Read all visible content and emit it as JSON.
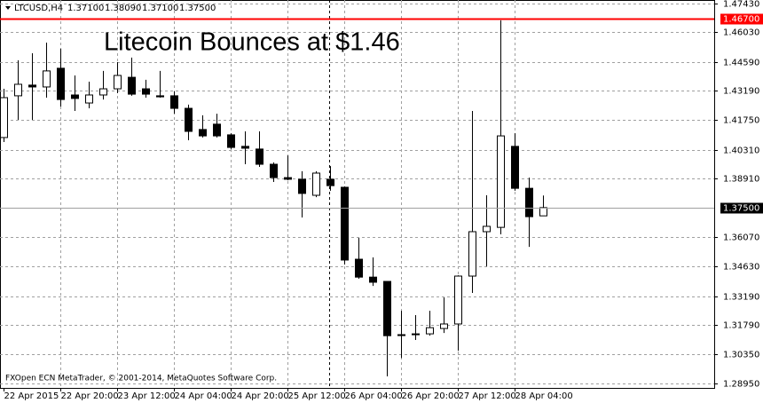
{
  "chart_data": {
    "type": "candlestick",
    "title": "Litecoin Bounces at $1.46",
    "header": {
      "symbol": "LTCUSD,H4",
      "values": [
        "1.37100",
        "1.38090",
        "1.37100",
        "1.37500"
      ]
    },
    "footer": "FXOpen ECN MetaTrader, © 2001-2014, MetaQuotes Software Corp.",
    "categories": [
      "22 Apr 2015",
      null,
      null,
      null,
      "22 Apr 20:00",
      null,
      null,
      null,
      "23 Apr 12:00",
      null,
      null,
      null,
      "24 Apr 04:00",
      null,
      null,
      null,
      "24 Apr 20:00",
      null,
      null,
      null,
      "25 Apr 12:00",
      null,
      null,
      null,
      "26 Apr 04:00",
      null,
      null,
      null,
      "26 Apr 20:00",
      null,
      null,
      null,
      "27 Apr 12:00",
      null,
      null,
      null,
      "28 Apr 04:00",
      null,
      null
    ],
    "open": [
      1.4091,
      1.4294,
      1.4346,
      1.4337,
      1.4428,
      1.4298,
      1.4259,
      1.4298,
      1.4328,
      1.4384,
      1.4328,
      1.4294,
      1.4294,
      1.4233,
      1.413,
      1.4156,
      1.4104,
      1.4048,
      1.4035,
      1.3961,
      1.3896,
      1.3888,
      1.381,
      1.3888,
      1.3849,
      1.3499,
      1.3412,
      1.3391,
      1.3132,
      1.3132,
      1.3136,
      1.3162,
      1.3184,
      1.3417,
      1.3633,
      1.3654,
      1.4048,
      1.3844,
      1.371
    ],
    "high": [
      1.4328,
      1.4467,
      1.4501,
      1.4553,
      1.4523,
      1.4393,
      1.4363,
      1.4415,
      1.4458,
      1.448,
      1.4372,
      1.4415,
      1.4315,
      1.4251,
      1.4199,
      1.4207,
      1.4112,
      1.4121,
      1.4121,
      1.397,
      1.4004,
      1.3927,
      1.3927,
      1.3952,
      1.3853,
      1.3603,
      1.3508,
      1.3391,
      1.3248,
      1.3227,
      1.3248,
      1.3313,
      1.3421,
      1.422,
      1.381,
      1.4661,
      1.4112,
      1.3896,
      1.3809
    ],
    "low": [
      1.4069,
      1.4177,
      1.4177,
      1.4285,
      1.4242,
      1.422,
      1.4233,
      1.4276,
      1.4307,
      1.4294,
      1.4285,
      1.4285,
      1.4207,
      1.4078,
      1.4091,
      1.4091,
      1.4035,
      1.3961,
      1.3948,
      1.3875,
      1.3883,
      1.3702,
      1.3801,
      1.3832,
      1.3473,
      1.3404,
      1.3369,
      1.2929,
      1.3019,
      1.3106,
      1.3127,
      1.314,
      1.3054,
      1.3335,
      1.3464,
      1.362,
      1.3832,
      1.3559,
      1.371
    ],
    "close": [
      1.4285,
      1.435,
      1.4337,
      1.4415,
      1.4276,
      1.4281,
      1.4298,
      1.4328,
      1.4393,
      1.4302,
      1.4302,
      1.4289,
      1.4233,
      1.4121,
      1.4099,
      1.4099,
      1.4043,
      1.4039,
      1.3961,
      1.3896,
      1.3888,
      1.3819,
      1.3918,
      1.3857,
      1.3495,
      1.3412,
      1.3387,
      1.3127,
      1.313,
      1.3136,
      1.3166,
      1.3184,
      1.3417,
      1.3633,
      1.3659,
      1.4099,
      1.3844,
      1.3706,
      1.375
    ],
    "up_color": "#ffffff",
    "down_color": "#000000",
    "outline_color": "#000000",
    "ylim": [
      1.2873,
      1.476
    ],
    "yticks": [
      {
        "value": 1.4743,
        "label": "1.47430"
      },
      {
        "value": 1.4603,
        "label": "1.46030"
      },
      {
        "value": 1.4459,
        "label": "1.44590"
      },
      {
        "value": 1.4319,
        "label": "1.43190"
      },
      {
        "value": 1.4175,
        "label": "1.41750"
      },
      {
        "value": 1.4031,
        "label": "1.40310"
      },
      {
        "value": 1.3891,
        "label": "1.38910"
      },
      {
        "value": 1.3607,
        "label": "1.36070"
      },
      {
        "value": 1.3463,
        "label": "1.34630"
      },
      {
        "value": 1.3319,
        "label": "1.33190"
      },
      {
        "value": 1.3179,
        "label": "1.31790"
      },
      {
        "value": 1.3035,
        "label": "1.30350"
      },
      {
        "value": 1.2895,
        "label": "1.28950"
      }
    ],
    "price_lines": [
      {
        "value": 1.467,
        "label": "1.46700",
        "color": "#ff0000"
      },
      {
        "value": 1.375,
        "label": "1.37500",
        "color": "#000000"
      }
    ],
    "grid": true
  }
}
